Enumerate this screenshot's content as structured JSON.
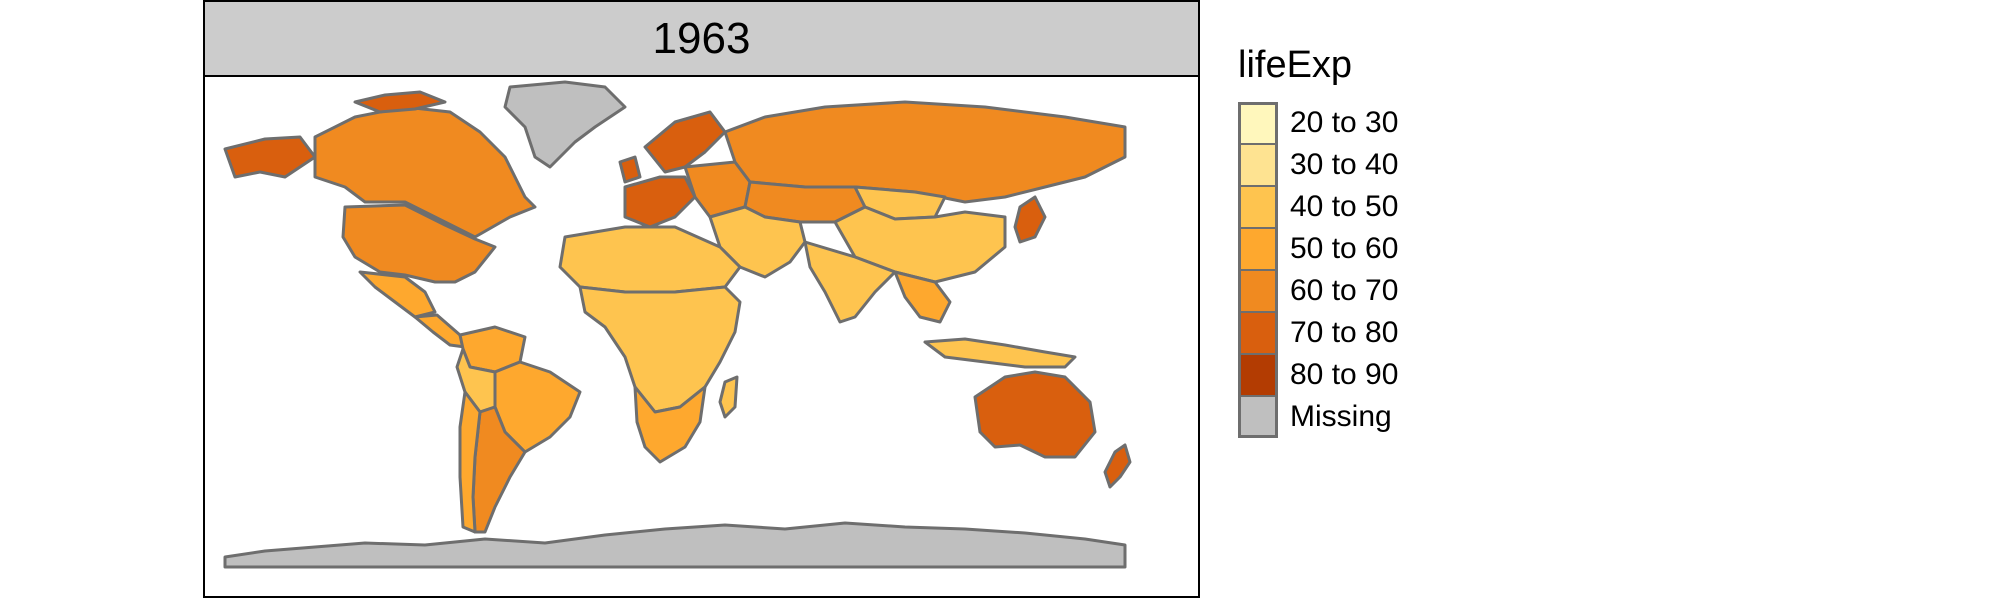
{
  "facet": {
    "label": "1963"
  },
  "legend": {
    "title": "lifeExp",
    "items": [
      {
        "label": "20 to 30",
        "color": "#fff7bc"
      },
      {
        "label": "30 to 40",
        "color": "#fee391"
      },
      {
        "label": "40 to 50",
        "color": "#fec44f"
      },
      {
        "label": "50 to 60",
        "color": "#fea82e"
      },
      {
        "label": "60 to 70",
        "color": "#f08a20"
      },
      {
        "label": "70 to 80",
        "color": "#d95f0e"
      },
      {
        "label": "80 to 90",
        "color": "#b33c02"
      },
      {
        "label": "Missing",
        "color": "#bfbfbf"
      }
    ]
  },
  "map": {
    "stroke_color": "#6e6e6e",
    "regions": [
      {
        "name": "Canada",
        "class": "70 to 80"
      },
      {
        "name": "Alaska/US",
        "class": "60 to 70"
      },
      {
        "name": "USA",
        "class": "60 to 70"
      },
      {
        "name": "Greenland",
        "class": "Missing"
      },
      {
        "name": "Mexico",
        "class": "50 to 60"
      },
      {
        "name": "Central America",
        "class": "50 to 60"
      },
      {
        "name": "Northern South America",
        "class": "50 to 60"
      },
      {
        "name": "Brazil",
        "class": "50 to 60"
      },
      {
        "name": "Bolivia/Peru",
        "class": "40 to 50"
      },
      {
        "name": "Argentina",
        "class": "60 to 70"
      },
      {
        "name": "Chile",
        "class": "50 to 60"
      },
      {
        "name": "Western Europe",
        "class": "70 to 80"
      },
      {
        "name": "Scandinavia",
        "class": "70 to 80"
      },
      {
        "name": "Eastern Europe",
        "class": "60 to 70"
      },
      {
        "name": "Russia",
        "class": "60 to 70"
      },
      {
        "name": "North Africa",
        "class": "40 to 50"
      },
      {
        "name": "Sub-Saharan Africa",
        "class": "40 to 50"
      },
      {
        "name": "Southern Africa",
        "class": "50 to 60"
      },
      {
        "name": "Madagascar",
        "class": "40 to 50"
      },
      {
        "name": "Middle East",
        "class": "40 to 50"
      },
      {
        "name": "Central Asia",
        "class": "60 to 70"
      },
      {
        "name": "India",
        "class": "40 to 50"
      },
      {
        "name": "China",
        "class": "40 to 50"
      },
      {
        "name": "Mongolia",
        "class": "40 to 50"
      },
      {
        "name": "Japan",
        "class": "70 to 80"
      },
      {
        "name": "Southeast Asia",
        "class": "50 to 60"
      },
      {
        "name": "Indonesia",
        "class": "40 to 50"
      },
      {
        "name": "Australia",
        "class": "70 to 80"
      },
      {
        "name": "New Zealand",
        "class": "70 to 80"
      },
      {
        "name": "Antarctica",
        "class": "Missing"
      }
    ]
  }
}
